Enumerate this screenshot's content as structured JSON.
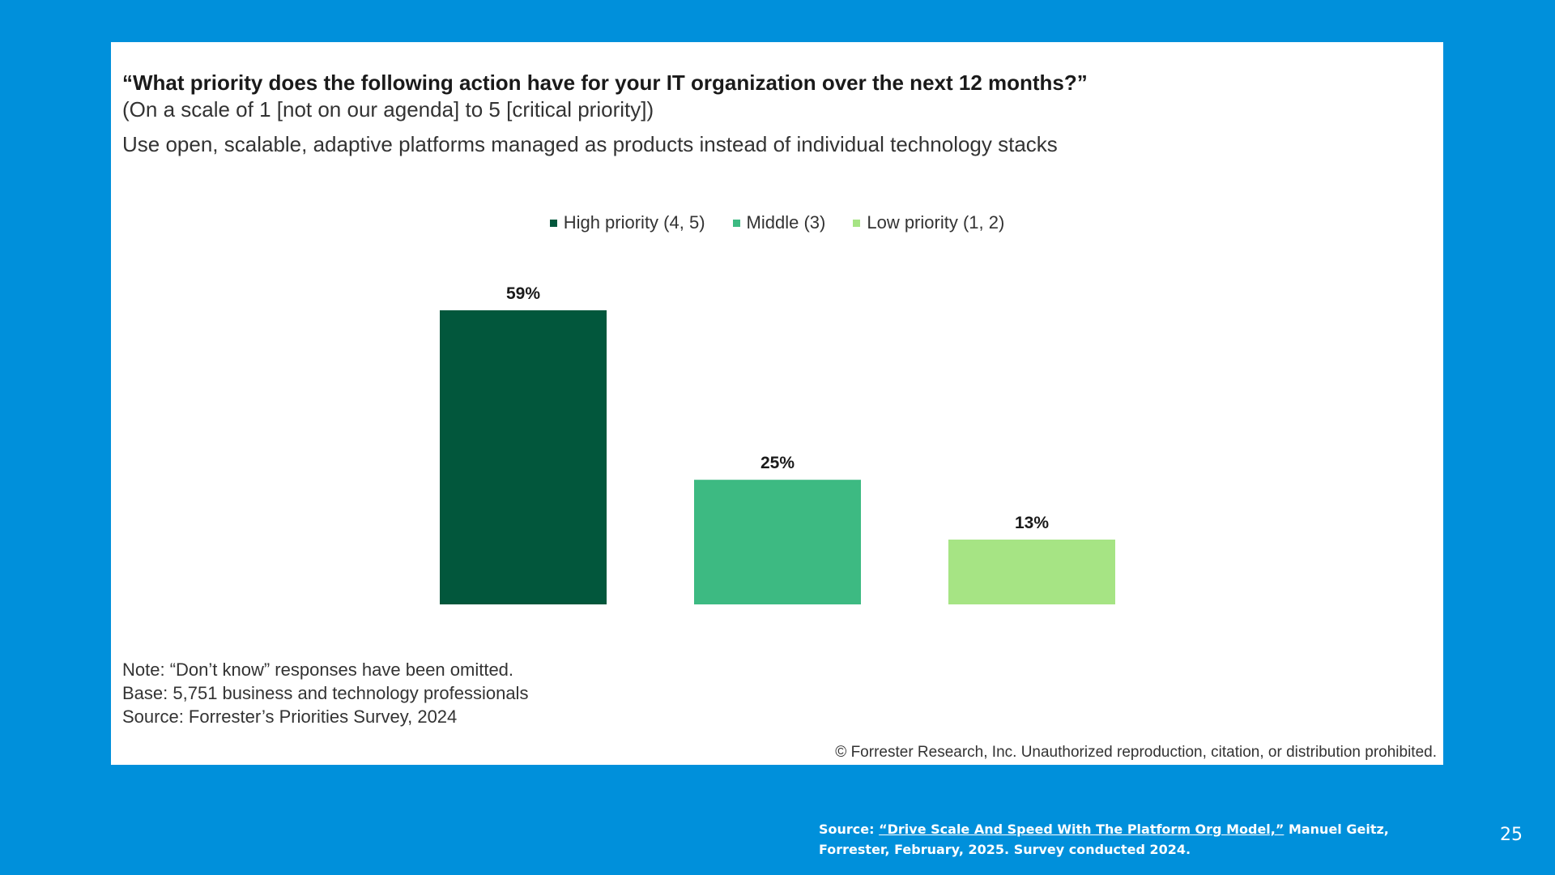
{
  "question": {
    "title": "“What priority does the following action have for your IT organization over the next 12 months?”",
    "scale": "(On a scale of 1 [not on our agenda] to 5 [critical priority])",
    "action": "Use open, scalable, adaptive platforms managed as products instead of individual technology stacks"
  },
  "legend": [
    {
      "label": "High priority (4, 5)",
      "color": "#02573c"
    },
    {
      "label": "Middle (3)",
      "color": "#3dba82"
    },
    {
      "label": "Low priority (1, 2)",
      "color": "#a6e484"
    }
  ],
  "chart_data": {
    "type": "bar",
    "title": "“What priority does the following action have for your IT organization over the next 12 months?”",
    "categories": [
      "High priority (4, 5)",
      "Middle (3)",
      "Low priority (1, 2)"
    ],
    "values": [
      59,
      25,
      13
    ],
    "value_labels": [
      "59%",
      "25%",
      "13%"
    ],
    "colors": [
      "#02573c",
      "#3dba82",
      "#a6e484"
    ],
    "ylim": [
      0,
      59
    ],
    "xlabel": "",
    "ylabel": "",
    "grid": false,
    "legend_position": "top-center"
  },
  "notes": {
    "note": "Note: “Don’t know” responses have been omitted.",
    "base": "Base: 5,751 business and technology professionals",
    "source": "Source: Forrester’s Priorities Survey, 2024"
  },
  "copyright": "© Forrester Research, Inc. Unauthorized reproduction, citation, or distribution prohibited.",
  "footer": {
    "source_prefix": "Source: ",
    "source_link": "“Drive Scale And Speed With The Platform Org Model,”",
    "source_suffix": " Manuel Geitz, Forrester, February, 2025. Survey conducted 2024.",
    "page_number": "25"
  }
}
